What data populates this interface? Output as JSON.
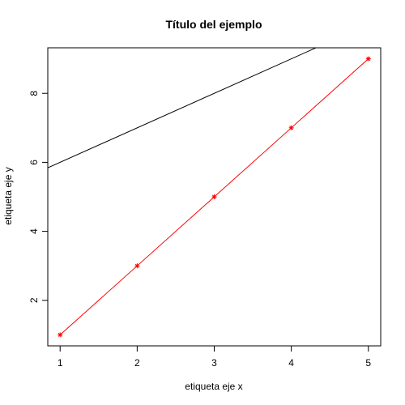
{
  "chart_data": {
    "type": "line",
    "title": "Título del ejemplo",
    "xlabel": "etiqueta eje x",
    "ylabel": "etiqueta eje y",
    "xlim": [
      0.84,
      5.16
    ],
    "ylim": [
      0.68,
      9.32
    ],
    "x_ticks": [
      1,
      2,
      3,
      4,
      5
    ],
    "y_ticks": [
      2,
      4,
      6,
      8
    ],
    "grid": false,
    "series": [
      {
        "color": "#ff0000",
        "marker": "star",
        "x": [
          1,
          2,
          3,
          4,
          5
        ],
        "y": [
          1,
          3,
          5,
          7,
          9
        ]
      }
    ],
    "reference_lines": [
      {
        "color": "#000000",
        "intercept": 5,
        "slope": 1
      }
    ]
  }
}
